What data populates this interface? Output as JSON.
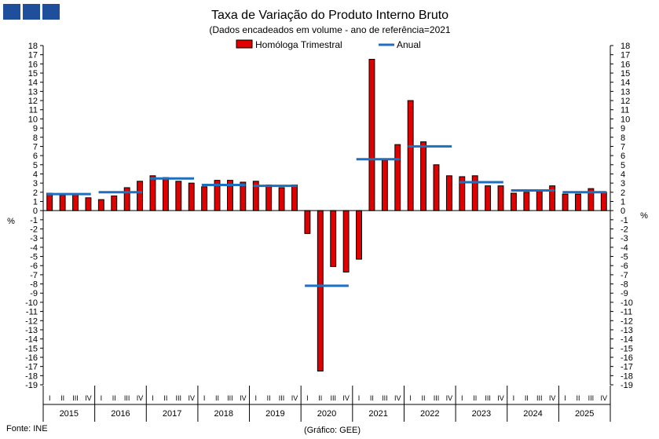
{
  "logo": {
    "name": "INE logo",
    "color": "#1f4e9a"
  },
  "chart_data": {
    "type": "bar",
    "title": "Taxa de Variação do Produto Interno Bruto",
    "subtitle": "(Dados encadeados em volume  - ano de referência=2021",
    "ylabel": "%",
    "ylim": [
      -19,
      18
    ],
    "yticks": [
      18,
      17,
      16,
      15,
      14,
      13,
      12,
      11,
      10,
      9,
      8,
      7,
      6,
      5,
      4,
      3,
      2,
      1,
      0,
      -1,
      -2,
      -3,
      -4,
      -5,
      -6,
      -7,
      -8,
      -9,
      -10,
      -11,
      -12,
      -13,
      -14,
      -15,
      -16,
      -17,
      -18,
      -19
    ],
    "quarters": [
      "I",
      "II",
      "III",
      "IV"
    ],
    "years": [
      "2015",
      "2016",
      "2017",
      "2018",
      "2019",
      "2020",
      "2021",
      "2022",
      "2023",
      "2024",
      "2025"
    ],
    "series": [
      {
        "name": "Homóloga Trimestral",
        "type": "bar",
        "color": "#e00000",
        "values": [
          1.9,
          1.7,
          1.8,
          1.4,
          1.2,
          1.6,
          2.5,
          3.2,
          3.8,
          3.6,
          3.2,
          3.0,
          2.6,
          3.3,
          3.3,
          3.1,
          3.2,
          2.8,
          2.5,
          2.8,
          -2.5,
          -17.5,
          -6.1,
          -6.7,
          -5.3,
          16.5,
          5.5,
          7.2,
          12.0,
          7.5,
          5.0,
          3.8,
          3.7,
          3.8,
          2.7,
          2.7,
          1.9,
          2.0,
          2.1,
          2.7,
          1.8,
          1.8,
          2.4,
          2.0
        ]
      },
      {
        "name": "Anual",
        "type": "step",
        "color": "#1f6fbf",
        "values": [
          1.8,
          2.0,
          3.5,
          2.8,
          2.7,
          -8.2,
          5.6,
          7.0,
          3.1,
          2.2,
          2.0
        ]
      }
    ],
    "legend_position": "top-center",
    "source": "Fonte: INE",
    "credit": "(Gráfico: GEE)"
  }
}
